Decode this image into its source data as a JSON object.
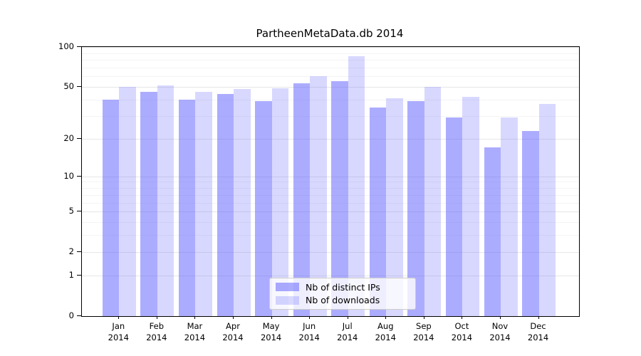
{
  "title": "PartheenMetaData.db 2014",
  "chart_data": {
    "type": "bar",
    "title": "PartheenMetaData.db 2014",
    "categories": [
      "Jan",
      "Feb",
      "Mar",
      "Apr",
      "May",
      "Jun",
      "Jul",
      "Aug",
      "Sep",
      "Oct",
      "Nov",
      "Dec"
    ],
    "year_label": "2014",
    "series": [
      {
        "name": "Nb of distinct IPs",
        "values": [
          40,
          46,
          40,
          44,
          39,
          53,
          55,
          35,
          39,
          29,
          17,
          23
        ],
        "color": "rgba(96,96,255,0.52)"
      },
      {
        "name": "Nb of downloads",
        "values": [
          50,
          51,
          46,
          48,
          49,
          60,
          85,
          41,
          50,
          42,
          29,
          37
        ],
        "color": "rgba(96,96,255,0.245)"
      }
    ],
    "y_scale": "log1p",
    "ylim": [
      0,
      100
    ],
    "y_ticks": [
      0,
      1,
      2,
      5,
      10,
      20,
      50,
      100
    ],
    "y_minor_ticks": [
      3,
      4,
      6,
      7,
      8,
      9,
      30,
      40,
      60,
      70,
      80,
      90
    ],
    "grid": true,
    "legend_position": "lower center"
  },
  "colors": {
    "background": "#ffffff",
    "spine": "#000000",
    "major_grid": "#e6e6e6",
    "minor_grid": "#f4f4f4",
    "bar_base": "#6060ff",
    "text": "#000000"
  }
}
